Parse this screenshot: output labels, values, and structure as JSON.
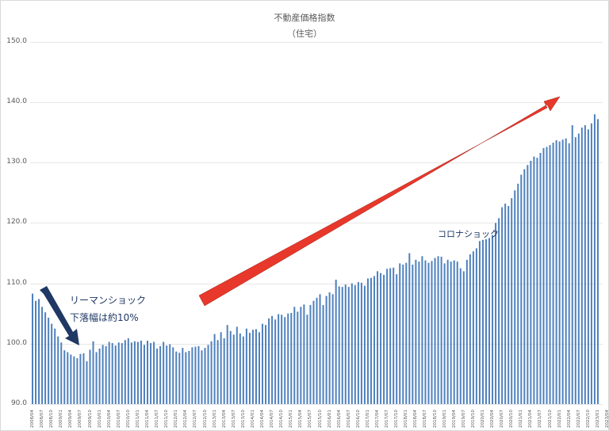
{
  "chart": {
    "title": "不動産価格指数",
    "subtitle": "（住宅）",
    "annotations": {
      "lehman_line1": "リーマンショック",
      "lehman_line2": "下落幅は約10%",
      "corona": "コロナショック"
    },
    "colors": {
      "bar": "#4f81bd",
      "grid": "#e6e6e6",
      "axis_text": "#595959",
      "red_arrow": "#e8382b",
      "blue_arrow": "#1f3864"
    }
  },
  "chart_data": {
    "type": "bar",
    "title": "不動産価格指数（住宅）",
    "xlabel": "",
    "ylabel": "",
    "ylim": [
      90,
      150
    ],
    "yticks": [
      "90.0",
      "100.0",
      "110.0",
      "120.0",
      "130.0",
      "140.0",
      "150.0"
    ],
    "grid": true,
    "legend": "none",
    "xtick_labels": [
      "2008/04",
      "2008/07",
      "2008/10",
      "2009/01",
      "2009/04",
      "2009/07",
      "2009/10",
      "2010/01",
      "2010/04",
      "2010/07",
      "2010/10",
      "2011/01",
      "2011/04",
      "2011/07",
      "2011/10",
      "2012/01",
      "2012/04",
      "2012/07",
      "2012/10",
      "2013/01",
      "2013/04",
      "2013/07",
      "2013/10",
      "2014/01",
      "2014/04",
      "2014/07",
      "2014/10",
      "2015/01",
      "2015/04",
      "2015/07",
      "2015/10",
      "2016/01",
      "2016/04",
      "2016/07",
      "2016/10",
      "2017/01",
      "2017/04",
      "2017/07",
      "2017/10",
      "2018/01",
      "2018/04",
      "2018/07",
      "2018/10",
      "2019/01",
      "2019/04",
      "2019/07",
      "2019/10",
      "2020/01",
      "2020/04",
      "2020/07",
      "2020/10",
      "2021/01",
      "2021/04",
      "2021/07",
      "2021/10",
      "2022/01",
      "2022/04",
      "2022/07",
      "2022/10",
      "2023/01",
      "2023/04",
      "2023/07",
      "2023/10",
      "2024/01"
    ],
    "start": "2008/04",
    "frequency": "monthly",
    "values": [
      108.3,
      107.1,
      107.4,
      106.1,
      105.2,
      104.3,
      103.3,
      102.5,
      101.2,
      100.2,
      98.9,
      98.6,
      98.2,
      97.9,
      97.6,
      98.3,
      98.4,
      97.1,
      99.0,
      100.4,
      98.6,
      99.2,
      99.8,
      99.6,
      100.3,
      100.1,
      99.7,
      100.2,
      100.1,
      100.6,
      100.9,
      100.2,
      100.4,
      100.3,
      100.5,
      99.8,
      100.5,
      100.1,
      100.3,
      99.2,
      99.6,
      100.3,
      99.7,
      99.9,
      99.4,
      98.7,
      98.5,
      99.3,
      98.6,
      98.8,
      99.4,
      99.5,
      99.6,
      98.9,
      99.3,
      99.8,
      100.4,
      101.6,
      100.6,
      101.9,
      100.9,
      103.1,
      102.1,
      101.5,
      102.8,
      101.7,
      101.2,
      102.5,
      101.8,
      102.3,
      102.4,
      101.9,
      103.3,
      103.1,
      104.2,
      104.6,
      104.0,
      104.9,
      104.8,
      104.4,
      105.0,
      105.1,
      106.1,
      105.3,
      106.1,
      106.5,
      104.8,
      106.4,
      107.1,
      107.6,
      108.2,
      106.4,
      107.9,
      108.5,
      108.2,
      110.6,
      109.5,
      109.4,
      109.8,
      109.4,
      110.0,
      109.7,
      110.2,
      110.1,
      109.6,
      110.8,
      110.9,
      111.2,
      112.0,
      111.7,
      111.4,
      112.4,
      112.5,
      112.6,
      111.5,
      113.3,
      113.1,
      113.4,
      115.0,
      113.1,
      113.9,
      113.6,
      114.5,
      113.8,
      113.4,
      113.7,
      114.2,
      114.5,
      114.4,
      113.3,
      113.9,
      113.6,
      113.8,
      113.6,
      112.5,
      112.0,
      113.9,
      114.8,
      115.3,
      115.8,
      117.0,
      117.2,
      117.3,
      117.5,
      118.0,
      120.0,
      120.8,
      122.6,
      123.2,
      122.8,
      124.1,
      125.4,
      126.5,
      128.0,
      128.9,
      129.6,
      130.3,
      131.0,
      130.8,
      131.6,
      132.4,
      132.6,
      132.9,
      133.3,
      133.7,
      133.5,
      133.8,
      134.0,
      133.2,
      136.2,
      134.2,
      134.8,
      135.8,
      136.2,
      135.5,
      136.5,
      138.0,
      137.2
    ]
  }
}
